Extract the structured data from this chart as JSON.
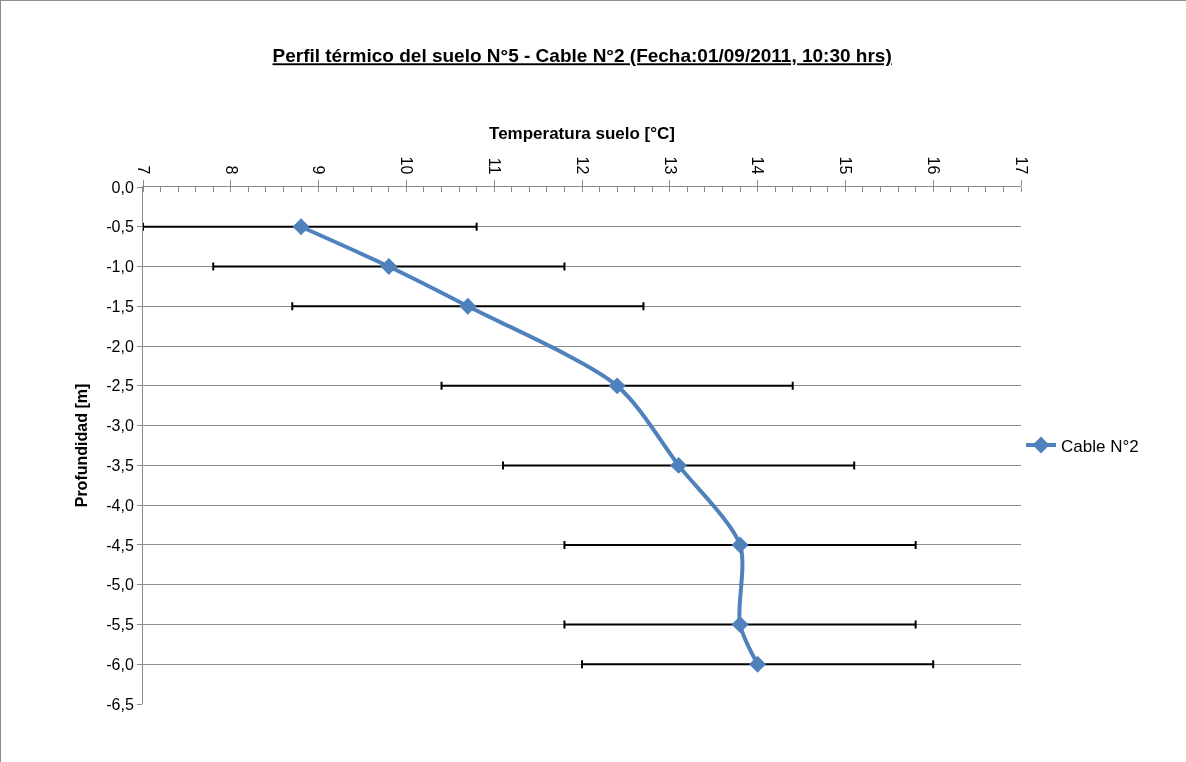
{
  "chart_data": {
    "type": "line",
    "title": "Perfil térmico del suelo N°5 - Cable N°2 (Fecha:01/09/2011, 10:30 hrs)",
    "xlabel": "Temperatura suelo [°C]",
    "ylabel": "Profundidad [m]",
    "x": [
      8.8,
      9.8,
      10.7,
      12.4,
      13.1,
      13.8,
      13.8,
      14.0
    ],
    "series": [
      {
        "name": "Cable N°2",
        "color": "#4f81bd",
        "values": [
          -0.5,
          -1.0,
          -1.5,
          -2.5,
          -3.5,
          -4.5,
          -5.5,
          -6.0
        ],
        "xerrors": [
          [
            7.0,
            10.8
          ],
          2,
          2,
          2,
          2,
          2,
          2,
          2
        ]
      }
    ],
    "xlim": [
      7,
      17
    ],
    "xticks": [
      7,
      8,
      9,
      10,
      11,
      12,
      13,
      14,
      15,
      16,
      17
    ],
    "ylim": [
      -6.5,
      0
    ],
    "yticks": [
      {
        "value": 0,
        "label": "0,0"
      },
      {
        "value": -0.5,
        "label": "-0,5"
      },
      {
        "value": -1,
        "label": "-1,0"
      },
      {
        "value": -1.5,
        "label": "-1,5"
      },
      {
        "value": -2,
        "label": "-2,0"
      },
      {
        "value": -2.5,
        "label": "-2,5"
      },
      {
        "value": -3,
        "label": "-3,0"
      },
      {
        "value": -3.5,
        "label": "-3,5"
      },
      {
        "value": -4,
        "label": "-4,0"
      },
      {
        "value": -4.5,
        "label": "-4,5"
      },
      {
        "value": -5,
        "label": "-5,0"
      },
      {
        "value": -5.5,
        "label": "-5,5"
      },
      {
        "value": -6,
        "label": "-6,0"
      },
      {
        "value": -6.5,
        "label": "-6,5"
      }
    ],
    "grid": "y",
    "legend": "right",
    "marker": "diamond",
    "line_style": "solid"
  }
}
